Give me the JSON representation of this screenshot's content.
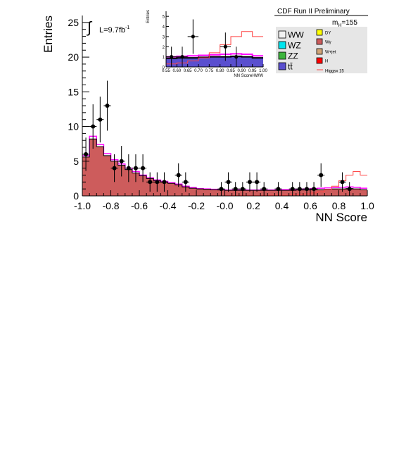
{
  "chart_data": {
    "type": "histogram",
    "header": "CDF Run II Preliminary",
    "mass_label": "m",
    "mass_sub": "H",
    "mass_value": "=155",
    "lumi_label": "L=9.7fb",
    "lumi_sup": "-1",
    "integral_symbol": "∫",
    "xlabel": "NN Score",
    "ylabel": "Entries",
    "xlim": [
      -1.0,
      1.0
    ],
    "ylim": [
      0,
      26
    ],
    "xticks": [
      -1.0,
      -0.8,
      -0.6,
      -0.4,
      -0.2,
      0.0,
      0.2,
      0.4,
      0.6,
      0.8,
      1.0
    ],
    "xtick_labels": [
      "-1.0",
      "-0.8",
      "-0.6",
      "-0.4",
      "-0.2",
      "-0.0",
      "0.2",
      "0.4",
      "0.6",
      "0.8",
      "1.0"
    ],
    "yticks": [
      0,
      5,
      10,
      15,
      20,
      25
    ],
    "ytick_labels": [
      "0",
      "5",
      "10",
      "15",
      "20",
      "25"
    ],
    "bin_edges": [
      -1.0,
      -0.95,
      -0.9,
      -0.85,
      -0.8,
      -0.75,
      -0.7,
      -0.65,
      -0.6,
      -0.55,
      -0.5,
      -0.45,
      -0.4,
      -0.35,
      -0.3,
      -0.25,
      -0.2,
      -0.15,
      -0.1,
      -0.05,
      0.0,
      0.05,
      0.1,
      0.15,
      0.2,
      0.25,
      0.3,
      0.35,
      0.4,
      0.45,
      0.5,
      0.55,
      0.6,
      0.65,
      0.7,
      0.75,
      0.8,
      0.85,
      0.9,
      0.95,
      1.0
    ],
    "background_stack_total": [
      5.6,
      8.2,
      7.1,
      5.8,
      5.0,
      4.4,
      3.8,
      3.3,
      2.9,
      2.5,
      2.2,
      2.0,
      1.8,
      1.6,
      1.3,
      1.1,
      1.0,
      0.95,
      0.9,
      0.85,
      0.8,
      0.8,
      0.8,
      0.8,
      0.8,
      0.8,
      0.8,
      0.8,
      0.8,
      0.8,
      0.85,
      0.85,
      0.9,
      0.9,
      0.95,
      1.0,
      1.0,
      1.05,
      1.0,
      0.9
    ],
    "signal_total": [
      5.8,
      8.6,
      7.4,
      6.1,
      5.2,
      4.6,
      4.0,
      3.5,
      3.0,
      2.6,
      2.3,
      2.1,
      1.9,
      1.7,
      1.4,
      1.2,
      1.05,
      1.0,
      0.95,
      0.9,
      0.85,
      0.85,
      0.85,
      0.85,
      0.85,
      0.85,
      0.85,
      0.85,
      0.9,
      0.9,
      0.95,
      1.0,
      1.05,
      1.1,
      1.15,
      1.2,
      1.25,
      1.3,
      1.25,
      1.1
    ],
    "higgs_x15": [
      0,
      0,
      0,
      0,
      0,
      0,
      0,
      0,
      0,
      0,
      0,
      0,
      0,
      0,
      0,
      0,
      0,
      0,
      0,
      0,
      0.05,
      0.05,
      0.05,
      0.05,
      0.05,
      0.05,
      0.1,
      0.1,
      0.1,
      0.15,
      0.2,
      0.3,
      0.4,
      0.6,
      0.9,
      1.4,
      2.2,
      3.0,
      3.5,
      3.0
    ],
    "data_points": [
      {
        "x": -0.975,
        "y": 6,
        "err": 2.4
      },
      {
        "x": -0.925,
        "y": 10,
        "err": 3.2
      },
      {
        "x": -0.875,
        "y": 11,
        "err": 3.3
      },
      {
        "x": -0.825,
        "y": 13,
        "err": 3.6
      },
      {
        "x": -0.775,
        "y": 4,
        "err": 2.0
      },
      {
        "x": -0.725,
        "y": 5,
        "err": 2.2
      },
      {
        "x": -0.675,
        "y": 4,
        "err": 2.0
      },
      {
        "x": -0.625,
        "y": 4,
        "err": 2.0
      },
      {
        "x": -0.575,
        "y": 4,
        "err": 2.0
      },
      {
        "x": -0.525,
        "y": 2,
        "err": 1.4
      },
      {
        "x": -0.475,
        "y": 2,
        "err": 1.4
      },
      {
        "x": -0.425,
        "y": 2,
        "err": 1.4
      },
      {
        "x": -0.325,
        "y": 3,
        "err": 1.7
      },
      {
        "x": -0.275,
        "y": 2,
        "err": 1.4
      },
      {
        "x": -0.025,
        "y": 1,
        "err": 1.0
      },
      {
        "x": 0.025,
        "y": 2,
        "err": 1.4
      },
      {
        "x": 0.075,
        "y": 1,
        "err": 1.0
      },
      {
        "x": 0.125,
        "y": 1,
        "err": 1.0
      },
      {
        "x": 0.175,
        "y": 2,
        "err": 1.4
      },
      {
        "x": 0.225,
        "y": 2,
        "err": 1.4
      },
      {
        "x": 0.275,
        "y": 1,
        "err": 1.0
      },
      {
        "x": 0.375,
        "y": 1,
        "err": 1.0
      },
      {
        "x": 0.475,
        "y": 1,
        "err": 1.0
      },
      {
        "x": 0.525,
        "y": 1,
        "err": 1.0
      },
      {
        "x": 0.575,
        "y": 1,
        "err": 1.0
      },
      {
        "x": 0.625,
        "y": 1,
        "err": 1.0
      },
      {
        "x": 0.675,
        "y": 3,
        "err": 1.7
      },
      {
        "x": 0.825,
        "y": 2,
        "err": 1.4
      },
      {
        "x": 0.875,
        "y": 1,
        "err": 1.0
      }
    ],
    "inset": {
      "xlabel": "NN ScoreHWW",
      "ylabel": "Entries",
      "xlim": [
        0.55,
        1.0
      ],
      "ylim": [
        0,
        5.5
      ],
      "xtick_labels": [
        "0.55",
        "0.60",
        "0.65",
        "0.70",
        "0.75",
        "0.80",
        "0.85",
        "0.90",
        "0.95",
        "1.00"
      ],
      "xticks": [
        0.55,
        0.6,
        0.65,
        0.7,
        0.75,
        0.8,
        0.85,
        0.9,
        0.95,
        1.0
      ],
      "yticks": [
        0,
        1,
        2,
        3,
        4,
        5
      ],
      "ytick_labels": [
        "0",
        "1",
        "2",
        "3",
        "4",
        "5"
      ],
      "bin_edges": [
        0.55,
        0.6,
        0.65,
        0.7,
        0.75,
        0.8,
        0.85,
        0.9,
        0.95,
        1.0
      ],
      "background_stack_total": [
        0.85,
        0.9,
        0.9,
        0.95,
        1.0,
        1.0,
        1.05,
        1.0,
        0.9
      ],
      "signal_total": [
        1.0,
        1.05,
        1.1,
        1.15,
        1.2,
        1.25,
        1.3,
        1.25,
        1.1
      ],
      "higgs_x15": [
        0.3,
        0.4,
        0.6,
        0.9,
        1.4,
        2.2,
        3.0,
        3.5,
        3.0
      ],
      "data_points": [
        {
          "x": 0.575,
          "y": 1,
          "err": 1.0
        },
        {
          "x": 0.625,
          "y": 1,
          "err": 1.0
        },
        {
          "x": 0.675,
          "y": 3,
          "err": 1.7
        },
        {
          "x": 0.825,
          "y": 2,
          "err": 1.4
        },
        {
          "x": 0.875,
          "y": 1,
          "err": 1.0
        }
      ]
    },
    "legend": [
      {
        "label": "WW",
        "color": "#f2f2f2"
      },
      {
        "label": "DY",
        "color": "#ffff00"
      },
      {
        "label": "WZ",
        "color": "#00e5ee"
      },
      {
        "label": "Wγ",
        "color": "#cd5c5c"
      },
      {
        "label": "ZZ",
        "color": "#3cb43c"
      },
      {
        "label": "W+jet",
        "color": "#d2a679"
      },
      {
        "label": "tt̄",
        "color": "#5a4fcf"
      },
      {
        "label": "H",
        "color": "#ff0000"
      },
      {
        "label": "Higgsx 15",
        "color": "#ff4444"
      }
    ],
    "colors": {
      "stack_fill": "#cd5c5c",
      "stack_line": "#000000",
      "signal_line": "#ff00ff",
      "higgs_line": "#ff4444",
      "data": "#000000"
    }
  }
}
